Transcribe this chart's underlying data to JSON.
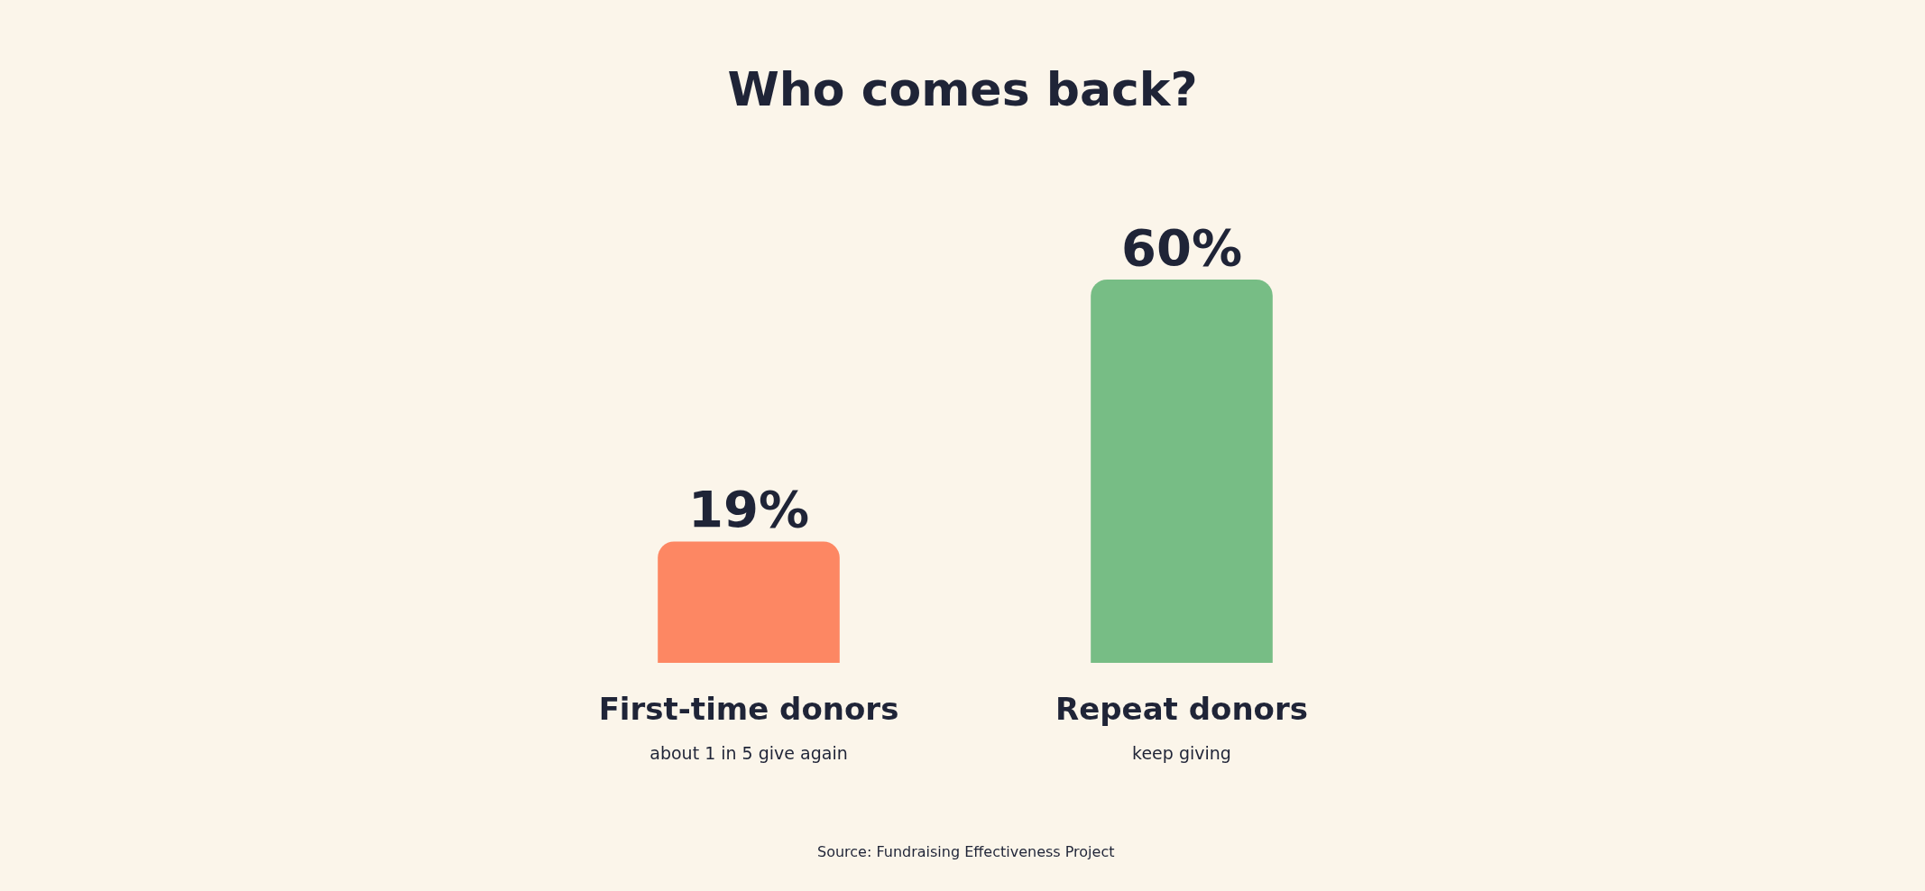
{
  "chart_data": {
    "type": "bar",
    "title": "Who comes back?",
    "categories": [
      "First-time donors\nabout 1 in 5 give again",
      "Repeat donors\nkeep giving"
    ],
    "values": [
      19,
      60
    ],
    "colors": [
      "#fd8763",
      "#77bd85"
    ],
    "value_labels": [
      "19%",
      "60%"
    ],
    "annotations": [
      "Source: Fundraising Effectiveness Project"
    ]
  }
}
